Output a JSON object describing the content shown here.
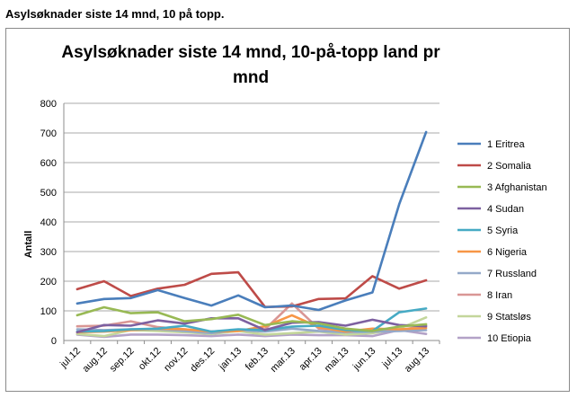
{
  "page_heading": "Asylsøknader siste 14 mnd, 10 på topp.",
  "chart_data": {
    "type": "line",
    "title_lines": [
      "Asylsøknader siste 14 mnd, 10-på-topp land pr",
      "mnd"
    ],
    "ylabel": "Antall",
    "xlabel": "",
    "ylim": [
      0,
      800
    ],
    "yticks": [
      "0",
      "100",
      "200",
      "300",
      "400",
      "500",
      "600",
      "700",
      "800"
    ],
    "grid": true,
    "legend_position": "right",
    "x": [
      "jul.12",
      "aug.12",
      "sep.12",
      "okt.12",
      "nov.12",
      "des.12",
      "jan.13",
      "feb.13",
      "mar.13",
      "apr.13",
      "mai.13",
      "jun.13",
      "jul.13",
      "aug.13"
    ],
    "series": [
      {
        "name": "1 Eritrea",
        "color": "#4a7ebb",
        "values": [
          125,
          140,
          143,
          170,
          143,
          118,
          152,
          112,
          118,
          103,
          135,
          162,
          460,
          703
        ]
      },
      {
        "name": "2 Somalia",
        "color": "#be4b48",
        "values": [
          173,
          200,
          150,
          175,
          188,
          225,
          230,
          113,
          115,
          140,
          142,
          217,
          175,
          203
        ]
      },
      {
        "name": "3 Afghanistan",
        "color": "#98b954",
        "values": [
          85,
          112,
          92,
          95,
          65,
          72,
          87,
          52,
          65,
          58,
          40,
          32,
          47,
          55
        ]
      },
      {
        "name": "4 Sudan",
        "color": "#7d60a0",
        "values": [
          28,
          52,
          50,
          68,
          57,
          75,
          75,
          35,
          60,
          62,
          50,
          70,
          52,
          48
        ]
      },
      {
        "name": "5 Syria",
        "color": "#46aac4",
        "values": [
          30,
          32,
          38,
          40,
          50,
          30,
          38,
          35,
          47,
          50,
          35,
          32,
          95,
          108
        ]
      },
      {
        "name": "6 Nigeria",
        "color": "#f79646",
        "values": [
          28,
          30,
          35,
          40,
          38,
          30,
          32,
          48,
          85,
          45,
          30,
          40,
          38,
          42
        ]
      },
      {
        "name": "7 Russland",
        "color": "#94a9c9",
        "values": [
          38,
          35,
          38,
          38,
          32,
          25,
          35,
          30,
          40,
          32,
          28,
          30,
          32,
          35
        ]
      },
      {
        "name": "8 Iran",
        "color": "#d99694",
        "values": [
          48,
          50,
          65,
          45,
          38,
          30,
          35,
          38,
          125,
          40,
          35,
          30,
          35,
          50
        ]
      },
      {
        "name": "9 Statsløs",
        "color": "#c3d69b",
        "values": [
          22,
          15,
          35,
          32,
          28,
          22,
          32,
          20,
          25,
          30,
          20,
          25,
          40,
          78
        ]
      },
      {
        "name": "10 Etiopia",
        "color": "#b3a2c7",
        "values": [
          20,
          12,
          20,
          20,
          18,
          15,
          20,
          15,
          20,
          18,
          18,
          15,
          35,
          22
        ]
      }
    ]
  }
}
